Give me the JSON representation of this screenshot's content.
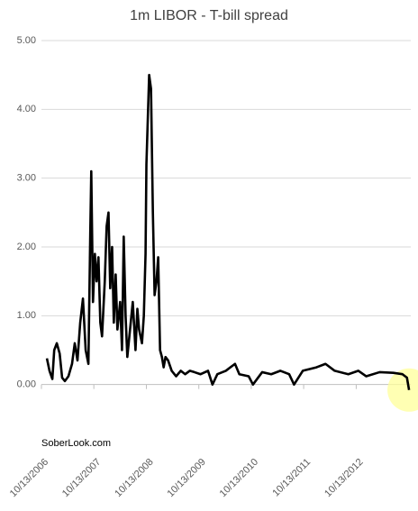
{
  "chart_data": {
    "type": "line",
    "title": "1m LIBOR - T-bill spread",
    "source": "SoberLook.com",
    "x": [
      "2006-11-20",
      "2006-12-08",
      "2006-12-28",
      "2007-01-10",
      "2007-01-28",
      "2007-02-17",
      "2007-03-06",
      "2007-03-25",
      "2007-04-19",
      "2007-05-14",
      "2007-06-02",
      "2007-06-21",
      "2007-07-10",
      "2007-07-29",
      "2007-08-17",
      "2007-09-05",
      "2007-09-18",
      "2007-09-25",
      "2007-10-07",
      "2007-10-20",
      "2007-11-01",
      "2007-11-14",
      "2007-11-27",
      "2007-12-09",
      "2007-12-28",
      "2008-01-10",
      "2008-01-23",
      "2008-02-04",
      "2008-02-17",
      "2008-02-29",
      "2008-03-13",
      "2008-03-25",
      "2008-04-13",
      "2008-04-26",
      "2008-05-08",
      "2008-05-21",
      "2008-06-02",
      "2008-06-21",
      "2008-07-10",
      "2008-07-29",
      "2008-08-11",
      "2008-08-23",
      "2008-09-12",
      "2008-09-25",
      "2008-10-07",
      "2008-10-13",
      "2008-11-01",
      "2008-11-14",
      "2008-11-27",
      "2008-12-09",
      "2008-12-22",
      "2009-01-03",
      "2009-01-16",
      "2009-01-29",
      "2009-02-10",
      "2009-02-23",
      "2009-03-13",
      "2009-04-07",
      "2009-05-08",
      "2009-06-09",
      "2009-07-10",
      "2009-08-11",
      "2009-09-12",
      "2009-10-25",
      "2009-12-16",
      "2010-01-16",
      "2010-02-19",
      "2010-04-19",
      "2010-06-22",
      "2010-07-22",
      "2010-09-25",
      "2010-10-25",
      "2010-12-28",
      "2011-03-01",
      "2011-05-04",
      "2011-07-04",
      "2011-08-07",
      "2011-10-07",
      "2012-01-10",
      "2012-03-13",
      "2012-05-16",
      "2012-08-19",
      "2012-10-28",
      "2012-12-22",
      "2013-03-25",
      "2013-06-28",
      "2013-08-31",
      "2013-10-01",
      "2013-10-16"
    ],
    "series": [
      {
        "color": "#000000",
        "values": [
          0.38,
          0.2,
          0.08,
          0.5,
          0.6,
          0.45,
          0.1,
          0.05,
          0.12,
          0.3,
          0.6,
          0.35,
          0.9,
          1.25,
          0.5,
          0.3,
          2.2,
          3.1,
          1.2,
          1.9,
          1.5,
          1.85,
          0.9,
          0.7,
          1.5,
          2.3,
          2.5,
          1.4,
          2.0,
          0.9,
          1.6,
          0.8,
          1.2,
          0.5,
          2.15,
          1.0,
          0.4,
          0.8,
          1.2,
          0.5,
          1.1,
          0.8,
          0.6,
          1.0,
          1.9,
          3.2,
          4.5,
          4.3,
          2.5,
          1.3,
          1.5,
          1.85,
          0.5,
          0.4,
          0.25,
          0.4,
          0.35,
          0.2,
          0.12,
          0.2,
          0.15,
          0.2,
          0.18,
          0.15,
          0.2,
          0.0,
          0.15,
          0.2,
          0.3,
          0.15,
          0.12,
          0.0,
          0.18,
          0.15,
          0.2,
          0.15,
          0.0,
          0.2,
          0.25,
          0.3,
          0.2,
          0.15,
          0.2,
          0.12,
          0.18,
          0.17,
          0.15,
          0.1,
          -0.08
        ]
      }
    ],
    "xlim": [
      "2006-10-13",
      "2013-10-28"
    ],
    "xticks": [
      {
        "value": "2006-10-13",
        "label": "10/13/2006"
      },
      {
        "value": "2007-10-13",
        "label": "10/13/2007"
      },
      {
        "value": "2008-10-13",
        "label": "10/13/2008"
      },
      {
        "value": "2009-10-13",
        "label": "10/13/2009"
      },
      {
        "value": "2010-10-13",
        "label": "10/13/2010"
      },
      {
        "value": "2011-10-13",
        "label": "10/13/2011"
      },
      {
        "value": "2012-10-13",
        "label": "10/13/2012"
      }
    ],
    "ylim": [
      -1,
      5
    ],
    "yticks": [
      {
        "value": 0,
        "label": "0.00"
      },
      {
        "value": 1,
        "label": "1.00"
      },
      {
        "value": 2,
        "label": "2.00"
      },
      {
        "value": 3,
        "label": "3.00"
      },
      {
        "value": 4,
        "label": "4.00"
      },
      {
        "value": 5,
        "label": "5.00"
      }
    ],
    "grid": true
  }
}
